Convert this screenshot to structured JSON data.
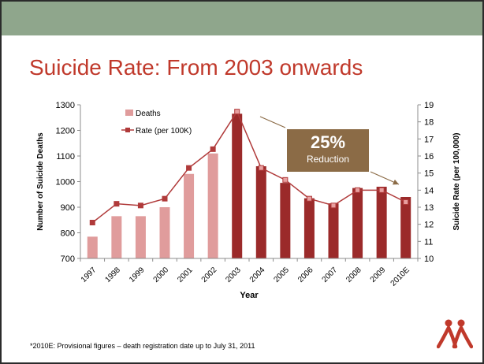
{
  "slide": {
    "title": "Suicide Rate: From 2003 onwards",
    "footnote": "*2010E: Provisional figures – death registration date up to July 31, 2011",
    "callout_value": "25%",
    "callout_label": "Reduction",
    "logo": "logo-icon"
  },
  "colors": {
    "topbar": "#8fa68c",
    "title": "#c0392b",
    "bar_light": "#e09c9c",
    "bar_dark": "#9b2a2a",
    "line": "#b03a3a",
    "marker_light": "#e8a0a0",
    "callout_bg": "#8b6b46",
    "arrow": "#8b6b46"
  },
  "chart_data": {
    "type": "bar",
    "categories": [
      "1997",
      "1998",
      "1999",
      "2000",
      "2001",
      "2002",
      "2003",
      "2004",
      "2005",
      "2006",
      "2007",
      "2008",
      "2009",
      "2010E"
    ],
    "series": [
      {
        "name": "Deaths",
        "type": "bar",
        "axis": "left",
        "values": [
          785,
          865,
          865,
          900,
          1030,
          1110,
          1265,
          1060,
          995,
          935,
          915,
          975,
          980,
          940
        ],
        "highlight_from": "2003"
      },
      {
        "name": "Rate (per 100K)",
        "type": "line",
        "axis": "right",
        "values": [
          12.1,
          13.2,
          13.1,
          13.5,
          15.3,
          16.4,
          18.6,
          15.3,
          14.6,
          13.5,
          13.1,
          14.0,
          14.0,
          13.3
        ]
      }
    ],
    "xlabel": "Year",
    "ylabel": "Number of Suicide Deaths",
    "y2label": "Suicide Rate (per 100,000)",
    "ylim": [
      700,
      1300
    ],
    "yticks": [
      700,
      800,
      900,
      1000,
      1100,
      1200,
      1300
    ],
    "y2lim": [
      10,
      19
    ],
    "y2ticks": [
      10,
      11,
      12,
      13,
      14,
      15,
      16,
      17,
      18,
      19
    ],
    "grid": false,
    "legend": "top-left",
    "annotation": "25% Reduction"
  }
}
